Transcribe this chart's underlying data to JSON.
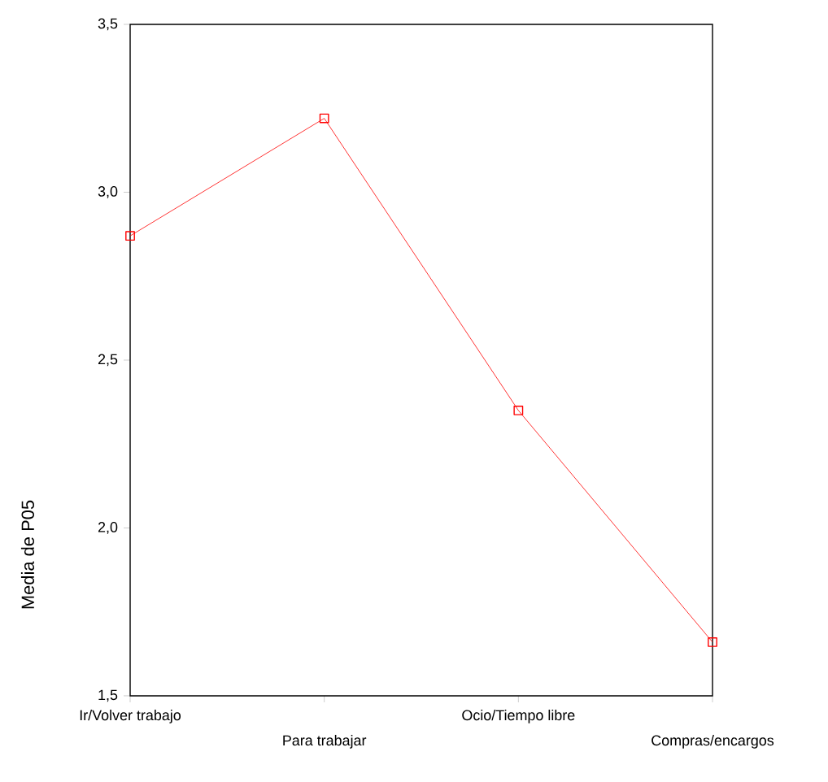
{
  "chart_data": {
    "type": "line",
    "ylabel": "Media de P05",
    "categories": [
      "Ir/Volver trabajo",
      "Para trabajar",
      "Ocio/Tiempo libre",
      "Compras/encargos"
    ],
    "series": [
      {
        "color": "#ff0000",
        "values": [
          2.87,
          3.22,
          2.35,
          1.66
        ]
      }
    ],
    "ylim": [
      1.5,
      3.5
    ],
    "yticks": [
      {
        "value": 1.5,
        "label": "1,5"
      },
      {
        "value": 2.0,
        "label": "2,0"
      },
      {
        "value": 2.5,
        "label": "2,5"
      },
      {
        "value": 3.0,
        "label": "3,0"
      },
      {
        "value": 3.5,
        "label": "3,5"
      }
    ],
    "marker": "square",
    "line_style": "solid"
  }
}
